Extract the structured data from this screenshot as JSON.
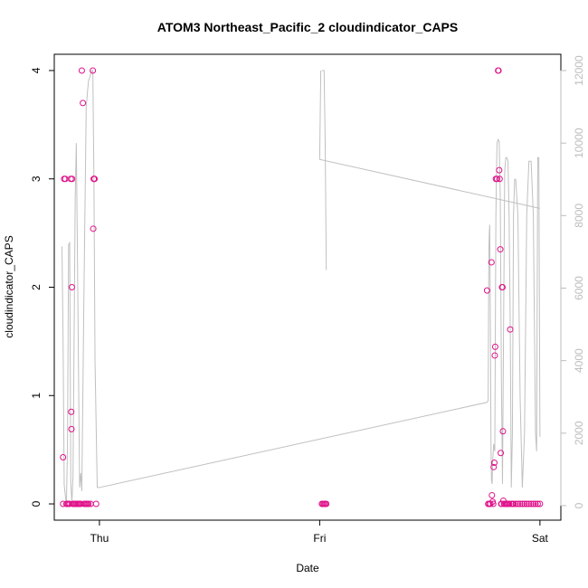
{
  "chart_data": {
    "type": "scatter",
    "title": "ATOM3 Northeast_Pacific_2 cloudindicator_CAPS",
    "xlabel": "Date",
    "ylabel": "cloudindicator_CAPS",
    "x_axis": {
      "type": "time",
      "ticks": [
        {
          "label": "Thu",
          "value": 0.0
        },
        {
          "label": "Fri",
          "value": 1.0
        },
        {
          "label": "Sat",
          "value": 2.0
        }
      ],
      "range": [
        -0.205,
        2.095
      ]
    },
    "y_left": {
      "range": [
        -0.15,
        4.15
      ],
      "ticks": [
        0,
        1,
        2,
        3,
        4
      ],
      "color": "#000000"
    },
    "y_right": {
      "range": [
        -400,
        12450
      ],
      "ticks": [
        0,
        2000,
        4000,
        6000,
        8000,
        10000,
        12000
      ],
      "color": "#bdbdbd"
    },
    "grid": false,
    "series": [
      {
        "kind": "points",
        "axis": "left",
        "color": "#e0128a",
        "points": [
          [
            -0.165,
            0.43
          ],
          [
            -0.165,
            0.0
          ],
          [
            -0.16,
            3.0
          ],
          [
            -0.155,
            3.0
          ],
          [
            -0.15,
            0.0
          ],
          [
            -0.145,
            0.0
          ],
          [
            -0.14,
            0.0
          ],
          [
            -0.135,
            0.0
          ],
          [
            -0.13,
            3.0
          ],
          [
            -0.128,
            0.85
          ],
          [
            -0.127,
            0.69
          ],
          [
            -0.125,
            2.0
          ],
          [
            -0.124,
            3.0
          ],
          [
            -0.12,
            0.0
          ],
          [
            -0.115,
            0.0
          ],
          [
            -0.11,
            0.0
          ],
          [
            -0.105,
            0.0
          ],
          [
            -0.1,
            0.0
          ],
          [
            -0.095,
            0.0
          ],
          [
            -0.09,
            0.0
          ],
          [
            -0.085,
            0.0
          ],
          [
            -0.08,
            4.0
          ],
          [
            -0.075,
            3.7
          ],
          [
            -0.07,
            0.0
          ],
          [
            -0.065,
            0.0
          ],
          [
            -0.06,
            0.0
          ],
          [
            -0.055,
            0.0
          ],
          [
            -0.05,
            0.0
          ],
          [
            -0.04,
            0.0
          ],
          [
            -0.03,
            4.0
          ],
          [
            -0.028,
            2.54
          ],
          [
            -0.026,
            3.0
          ],
          [
            -0.024,
            3.0
          ],
          [
            -0.022,
            3.0
          ],
          [
            -0.015,
            0.0
          ],
          [
            1.01,
            0.0
          ],
          [
            1.015,
            0.0
          ],
          [
            1.02,
            0.0
          ],
          [
            1.025,
            0.0
          ],
          [
            1.03,
            0.0
          ],
          [
            1.76,
            1.97
          ],
          [
            1.765,
            0.0
          ],
          [
            1.77,
            0.0
          ],
          [
            1.775,
            0.0
          ],
          [
            1.78,
            2.23
          ],
          [
            1.782,
            0.08
          ],
          [
            1.785,
            0.02
          ],
          [
            1.788,
            0.0
          ],
          [
            1.79,
            0.34
          ],
          [
            1.793,
            0.38
          ],
          [
            1.795,
            1.37
          ],
          [
            1.797,
            1.45
          ],
          [
            1.8,
            3.0
          ],
          [
            1.805,
            3.0
          ],
          [
            1.81,
            4.0
          ],
          [
            1.812,
            4.0
          ],
          [
            1.815,
            3.08
          ],
          [
            1.817,
            3.0
          ],
          [
            1.82,
            2.35
          ],
          [
            1.822,
            0.47
          ],
          [
            1.824,
            0.0
          ],
          [
            1.826,
            0.0
          ],
          [
            1.828,
            2.0
          ],
          [
            1.83,
            2.0
          ],
          [
            1.832,
            0.67
          ],
          [
            1.834,
            0.03
          ],
          [
            1.837,
            0.0
          ],
          [
            1.84,
            0.0
          ],
          [
            1.845,
            0.0
          ],
          [
            1.85,
            0.0
          ],
          [
            1.855,
            0.0
          ],
          [
            1.86,
            0.0
          ],
          [
            1.865,
            1.61
          ],
          [
            1.87,
            0.0
          ],
          [
            1.875,
            0.0
          ],
          [
            1.88,
            0.0
          ],
          [
            1.89,
            0.0
          ],
          [
            1.9,
            0.0
          ],
          [
            1.91,
            0.0
          ],
          [
            1.92,
            0.0
          ],
          [
            1.93,
            0.0
          ],
          [
            1.94,
            0.0
          ],
          [
            1.95,
            0.0
          ],
          [
            1.96,
            0.0
          ],
          [
            1.97,
            0.0
          ],
          [
            1.98,
            0.0
          ],
          [
            1.99,
            0.0
          ],
          [
            2.0,
            0.0
          ]
        ]
      },
      {
        "kind": "line",
        "axis": "right",
        "color": "#c0c0c0",
        "points": [
          [
            -0.17,
            7150
          ],
          [
            -0.165,
            4550
          ],
          [
            -0.16,
            580
          ],
          [
            -0.15,
            0
          ],
          [
            -0.145,
            1600
          ],
          [
            -0.14,
            7200
          ],
          [
            -0.135,
            7250
          ],
          [
            -0.13,
            600
          ],
          [
            -0.125,
            100
          ],
          [
            -0.12,
            800
          ],
          [
            -0.11,
            8450
          ],
          [
            -0.105,
            10000
          ],
          [
            -0.1,
            7000
          ],
          [
            -0.09,
            500
          ],
          [
            -0.085,
            900
          ],
          [
            -0.08,
            400
          ],
          [
            -0.07,
            6000
          ],
          [
            -0.06,
            11000
          ],
          [
            -0.05,
            11700
          ],
          [
            -0.04,
            11900
          ],
          [
            -0.035,
            12000
          ],
          [
            -0.03,
            12000
          ],
          [
            -0.025,
            9000
          ],
          [
            -0.02,
            4000
          ],
          [
            -0.01,
            500
          ],
          [
            0.0,
            500
          ],
          [
            1.76,
            2850
          ],
          [
            1.765,
            2900
          ],
          [
            1.768,
            7000
          ],
          [
            1.77,
            7500
          ],
          [
            1.772,
            7750
          ],
          [
            1.775,
            5000
          ],
          [
            1.778,
            1500
          ],
          [
            1.78,
            700
          ],
          [
            1.783,
            600
          ],
          [
            1.785,
            1200
          ],
          [
            1.79,
            1700
          ],
          [
            1.795,
            1500
          ],
          [
            1.8,
            8000
          ],
          [
            1.805,
            10000
          ],
          [
            1.81,
            10100
          ],
          [
            1.815,
            10050
          ],
          [
            1.82,
            8500
          ],
          [
            1.825,
            3500
          ],
          [
            1.83,
            600
          ],
          [
            1.835,
            5000
          ],
          [
            1.84,
            9200
          ],
          [
            1.845,
            9600
          ],
          [
            1.85,
            9600
          ],
          [
            1.855,
            9500
          ],
          [
            1.86,
            8000
          ],
          [
            1.865,
            5000
          ],
          [
            1.87,
            500
          ],
          [
            1.875,
            2000
          ],
          [
            1.88,
            8000
          ],
          [
            1.885,
            9000
          ],
          [
            1.89,
            9000
          ],
          [
            1.9,
            8000
          ],
          [
            1.91,
            3000
          ],
          [
            1.92,
            500
          ],
          [
            1.93,
            2000
          ],
          [
            1.94,
            8000
          ],
          [
            1.95,
            9500
          ],
          [
            1.96,
            9500
          ],
          [
            1.97,
            8000
          ],
          [
            1.975,
            5000
          ],
          [
            1.98,
            2000
          ],
          [
            1.985,
            1500
          ],
          [
            1.99,
            9600
          ],
          [
            1.995,
            9600
          ],
          [
            2.0,
            1900
          ]
        ]
      },
      {
        "kind": "line",
        "axis": "right",
        "color": "#c0c0c0",
        "points": [
          [
            1.01,
            12000
          ],
          [
            1.015,
            12000
          ],
          [
            1.02,
            12000
          ],
          [
            1.025,
            10000
          ],
          [
            1.03,
            6500
          ]
        ]
      },
      {
        "kind": "line",
        "axis": "right",
        "color": "#c0c0c0",
        "points": [
          [
            1.005,
            12000
          ],
          [
            1.0,
            9550
          ],
          [
            2.0,
            8200
          ]
        ]
      }
    ]
  }
}
